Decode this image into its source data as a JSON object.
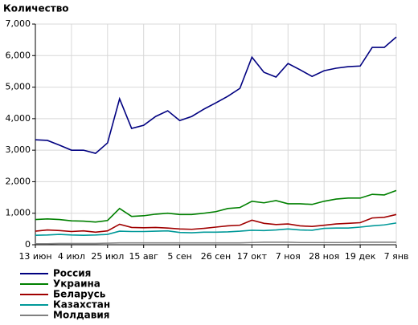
{
  "chart_data": {
    "type": "line",
    "title": "Количество",
    "categories": [
      "13 июн",
      null,
      null,
      "4 июл",
      null,
      null,
      "25 июл",
      null,
      null,
      "15 авг",
      null,
      null,
      "5 сен",
      null,
      null,
      "26 сен",
      null,
      null,
      "17 окт",
      null,
      null,
      "7 ноя",
      null,
      null,
      "28 ноя",
      null,
      null,
      "19 дек",
      null,
      null,
      "7 янв"
    ],
    "series": [
      {
        "name": "Россия",
        "color": "#000080",
        "values": [
          3330,
          3310,
          3160,
          3000,
          3000,
          2900,
          3230,
          4630,
          3690,
          3790,
          4070,
          4250,
          3940,
          4070,
          4300,
          4500,
          4710,
          4960,
          5950,
          5470,
          5320,
          5750,
          5550,
          5340,
          5520,
          5600,
          5650,
          5670,
          6260,
          6260,
          6590
        ]
      },
      {
        "name": "Украина",
        "color": "#008000",
        "values": [
          800,
          820,
          800,
          760,
          750,
          720,
          770,
          1150,
          900,
          920,
          970,
          1000,
          960,
          960,
          1000,
          1050,
          1150,
          1180,
          1380,
          1330,
          1400,
          1300,
          1300,
          1280,
          1380,
          1450,
          1480,
          1480,
          1600,
          1580,
          1720
        ]
      },
      {
        "name": "Беларусь",
        "color": "#a00000",
        "values": [
          430,
          470,
          450,
          420,
          440,
          400,
          440,
          650,
          550,
          540,
          550,
          530,
          500,
          490,
          520,
          560,
          600,
          620,
          780,
          680,
          640,
          660,
          600,
          580,
          620,
          660,
          680,
          700,
          850,
          870,
          960
        ]
      },
      {
        "name": "Казахстан",
        "color": "#009999",
        "values": [
          300,
          310,
          330,
          310,
          300,
          310,
          330,
          430,
          420,
          420,
          430,
          440,
          390,
          380,
          400,
          400,
          410,
          430,
          460,
          450,
          470,
          500,
          470,
          460,
          520,
          530,
          530,
          560,
          600,
          630,
          690
        ]
      },
      {
        "name": "Молдавия",
        "color": "#808080",
        "values": [
          30,
          30,
          40,
          40,
          40,
          40,
          50,
          60,
          60,
          60,
          60,
          60,
          60,
          60,
          60,
          60,
          60,
          60,
          70,
          80,
          80,
          80,
          70,
          70,
          70,
          70,
          70,
          80,
          80,
          80,
          80
        ]
      }
    ],
    "ylim": [
      0,
      7000
    ],
    "yticks": [
      0,
      {
        "value": 1000,
        "label": "1,000"
      },
      {
        "value": 2000,
        "label": "2,000"
      },
      {
        "value": 3000,
        "label": "3,000"
      },
      {
        "value": 4000,
        "label": "4,000"
      },
      {
        "value": 5000,
        "label": "5,000"
      },
      {
        "value": 6000,
        "label": "6,000"
      },
      {
        "value": 7000,
        "label": "7,000"
      }
    ],
    "grid": true
  }
}
